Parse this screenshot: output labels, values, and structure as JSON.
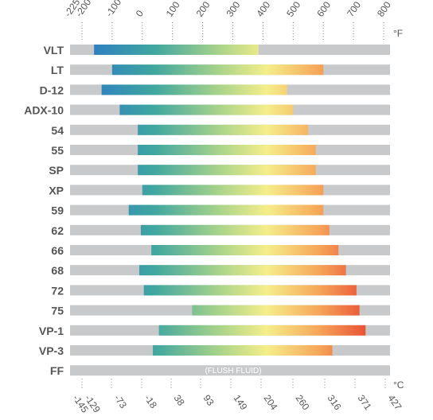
{
  "chart_data": {
    "type": "bar",
    "subtype": "range",
    "title": "",
    "units": {
      "top": "°F",
      "bottom": "°C"
    },
    "top_ticks": [
      "-225",
      "-200",
      "-100",
      "0",
      "100",
      "200",
      "300",
      "400",
      "500",
      "600",
      "700",
      "800"
    ],
    "bottom_ticks": [
      "-145",
      "-129",
      "-73",
      "-18",
      "38",
      "93",
      "149",
      "204",
      "260",
      "316",
      "371",
      "427"
    ],
    "xlim_f": [
      -225,
      800
    ],
    "gradient_colors": [
      "#2f7fc1",
      "#3fa6a0",
      "#a8d38a",
      "#f5ee8a",
      "#f6a85a",
      "#e8432f"
    ],
    "track_color": "#c7c9cb",
    "categories": [
      "VLT",
      "LT",
      "D-12",
      "ADX-10",
      "54",
      "55",
      "SP",
      "XP",
      "59",
      "62",
      "66",
      "68",
      "72",
      "75",
      "VP-1",
      "VP-3",
      "FF"
    ],
    "ranges_f": [
      {
        "label": "VLT",
        "min": -160,
        "max": 385
      },
      {
        "label": "LT",
        "min": -100,
        "max": 600
      },
      {
        "label": "D-12",
        "min": -135,
        "max": 480
      },
      {
        "label": "ADX-10",
        "min": -75,
        "max": 500
      },
      {
        "label": "54",
        "min": -15,
        "max": 550
      },
      {
        "label": "55",
        "min": -15,
        "max": 575
      },
      {
        "label": "SP",
        "min": -15,
        "max": 575
      },
      {
        "label": "XP",
        "min": 0,
        "max": 600
      },
      {
        "label": "59",
        "min": -45,
        "max": 600
      },
      {
        "label": "62",
        "min": -5,
        "max": 620
      },
      {
        "label": "66",
        "min": 30,
        "max": 650
      },
      {
        "label": "68",
        "min": -10,
        "max": 675
      },
      {
        "label": "72",
        "min": 5,
        "max": 710
      },
      {
        "label": "75",
        "min": 165,
        "max": 720
      },
      {
        "label": "VP-1",
        "min": 55,
        "max": 740
      },
      {
        "label": "VP-3",
        "min": 35,
        "max": 630
      }
    ],
    "flush_fluid": {
      "label": "FF",
      "text": "(FLUSH FLUID)"
    }
  }
}
